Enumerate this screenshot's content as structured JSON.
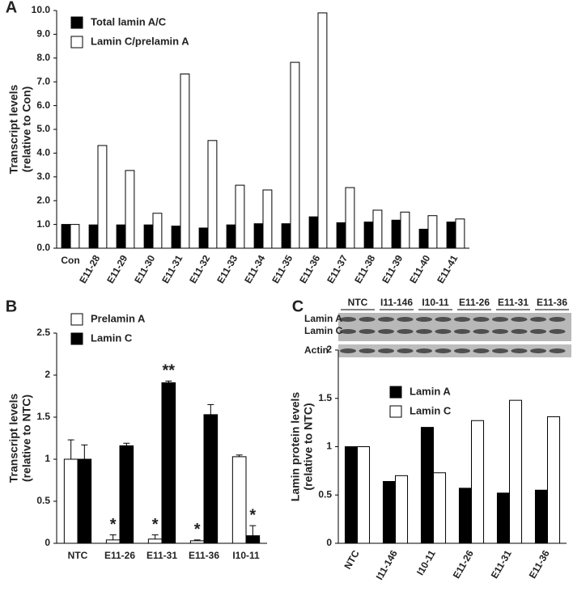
{
  "chart_data": [
    {
      "type": "bar",
      "panel_label": "A",
      "ylabel": [
        "Transcript levels",
        "(relative to Con)"
      ],
      "categories": [
        "Con",
        "E11-28",
        "E11-29",
        "E11-30",
        "E11-31",
        "E11-32",
        "E11-33",
        "E11-34",
        "E11-35",
        "E11-36",
        "E11-37",
        "E11-38",
        "E11-39",
        "E11-40",
        "E11-41"
      ],
      "series": [
        {
          "name": "Total lamin A/C",
          "color": "#000000",
          "values": [
            1.0,
            0.98,
            0.98,
            0.98,
            0.93,
            0.85,
            0.98,
            1.03,
            1.03,
            1.32,
            1.07,
            1.1,
            1.18,
            0.8,
            1.1
          ]
        },
        {
          "name": "Lamin C/prelamin A",
          "color": "#ffffff",
          "values": [
            1.0,
            4.32,
            3.27,
            1.47,
            7.33,
            4.53,
            2.65,
            2.45,
            7.82,
            9.9,
            2.55,
            1.6,
            1.52,
            1.37,
            1.23
          ]
        }
      ],
      "ylim": [
        0,
        10
      ],
      "yticks": [
        {
          "value": 0,
          "label": "0.0"
        },
        {
          "value": 1,
          "label": "1.0"
        },
        {
          "value": 2,
          "label": "2.0"
        },
        {
          "value": 3,
          "label": "3.0"
        },
        {
          "value": 4,
          "label": "4.0"
        },
        {
          "value": 5,
          "label": "5.0"
        },
        {
          "value": 6,
          "label": "6.0"
        },
        {
          "value": 7,
          "label": "7.0"
        },
        {
          "value": 8,
          "label": "8.0"
        },
        {
          "value": 9,
          "label": "9.0"
        },
        {
          "value": 10,
          "label": "10.0"
        }
      ]
    },
    {
      "type": "bar",
      "panel_label": "B",
      "ylabel": [
        "Transcript levels",
        "(relative to NTC)"
      ],
      "categories": [
        "NTC",
        "E11-26",
        "E11-31",
        "E11-36",
        "I10-11"
      ],
      "series": [
        {
          "name": "Prelamin A",
          "color": "#ffffff",
          "values": [
            1.0,
            0.04,
            0.05,
            0.03,
            1.03
          ],
          "errors": [
            0.23,
            0.06,
            0.05,
            0.01,
            0.02
          ]
        },
        {
          "name": "Lamin C",
          "color": "#000000",
          "values": [
            1.0,
            1.16,
            1.91,
            1.53,
            0.09
          ],
          "errors": [
            0.17,
            0.03,
            0.02,
            0.12,
            0.12
          ]
        }
      ],
      "annotations": [
        {
          "text": "*",
          "series": 0,
          "index": 1
        },
        {
          "text": "*",
          "series": 0,
          "index": 2
        },
        {
          "text": "*",
          "series": 0,
          "index": 3
        },
        {
          "text": "**",
          "series": 1,
          "index": 2
        },
        {
          "text": "*",
          "series": 1,
          "index": 4
        }
      ],
      "ylim": [
        0,
        2.5
      ],
      "yticks": [
        0,
        0.5,
        1,
        1.5,
        2,
        2.5
      ]
    },
    {
      "type": "bar",
      "panel_label": "C",
      "ylabel": [
        "Lamin protein levels",
        "(relative to NTC)"
      ],
      "categories": [
        "NTC",
        "I11-146",
        "I10-11",
        "E11-26",
        "E11-31",
        "E11-36"
      ],
      "series": [
        {
          "name": "Lamin A",
          "color": "#000000",
          "values": [
            1.0,
            0.64,
            1.2,
            0.57,
            0.52,
            0.55
          ]
        },
        {
          "name": "Lamin C",
          "color": "#ffffff",
          "values": [
            1.0,
            0.7,
            0.73,
            1.27,
            1.48,
            1.31
          ]
        }
      ],
      "ylim": [
        0,
        2
      ],
      "yticks": [
        0,
        0.5,
        1,
        1.5,
        2
      ],
      "blot": {
        "lanes": [
          "NTC",
          "I11-146",
          "I10-11",
          "E11-26",
          "E11-31",
          "E11-36"
        ],
        "rows": [
          "Lamin A",
          "Lamin C",
          "Actin"
        ]
      }
    }
  ]
}
